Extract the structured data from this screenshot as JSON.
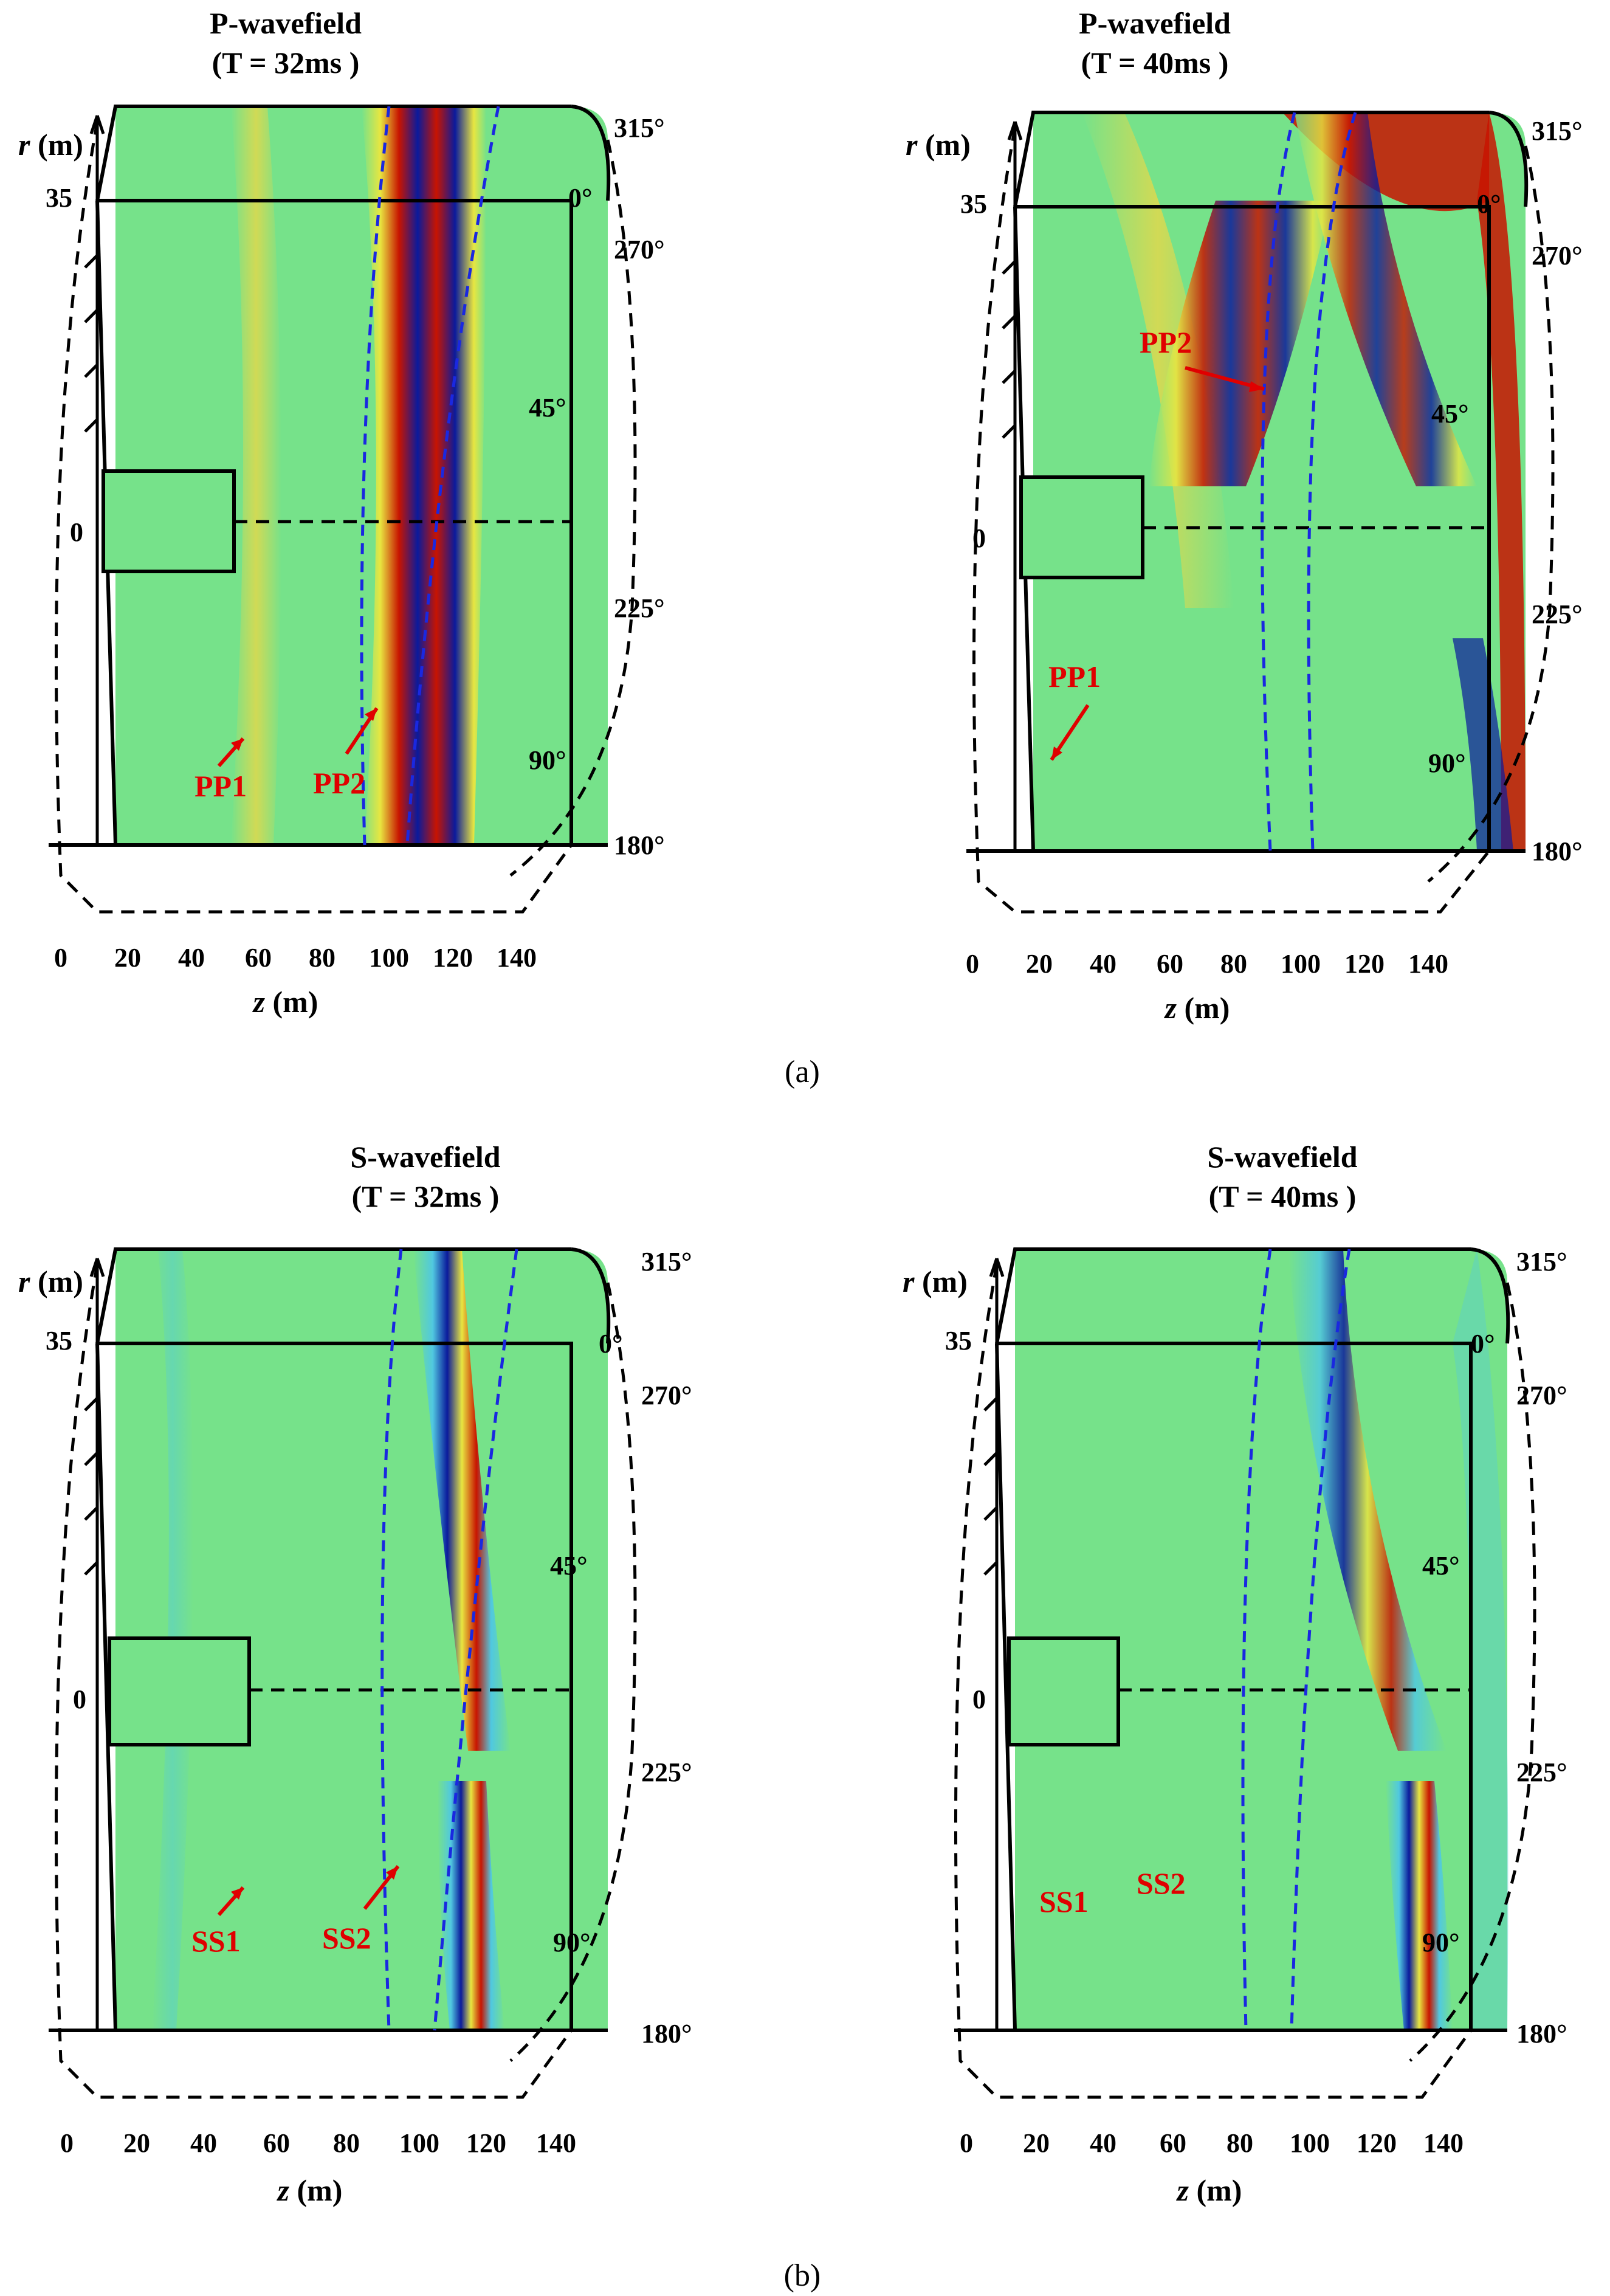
{
  "figure": {
    "panels": [
      {
        "id": "a-left",
        "title_line1": "P-wavefield",
        "title_line2": "(T = 32ms )",
        "wave_labels": [
          "PP1",
          "PP2"
        ]
      },
      {
        "id": "a-right",
        "title_line1": "P-wavefield",
        "title_line2": "(T = 40ms )",
        "wave_labels": [
          "PP1",
          "PP2"
        ]
      },
      {
        "id": "b-left",
        "title_line1": "S-wavefield",
        "title_line2": "(T = 32ms )",
        "wave_labels": [
          "SS1",
          "SS2"
        ]
      },
      {
        "id": "b-right",
        "title_line1": "S-wavefield",
        "title_line2": "(T = 40ms )",
        "wave_labels": [
          "SS1",
          "SS2"
        ]
      }
    ],
    "r_axis": {
      "label_var": "r",
      "label_unit": " (m)",
      "ticks": [
        "35",
        "0"
      ]
    },
    "z_axis": {
      "label_var": "z",
      "label_unit": " (m)",
      "ticks": [
        "0",
        "20",
        "40",
        "60",
        "80",
        "100",
        "120",
        "140"
      ]
    },
    "angles": [
      "315°",
      "0°",
      "270°",
      "45°",
      "225°",
      "90°",
      "180°"
    ],
    "captions": [
      "(a)",
      "(b)"
    ],
    "colors": {
      "background_field": "#76e28a",
      "positive": "#c81400",
      "negative": "#0a1a9c",
      "boundary_lines": "#1a28e0",
      "annotation": "#e00000"
    }
  }
}
